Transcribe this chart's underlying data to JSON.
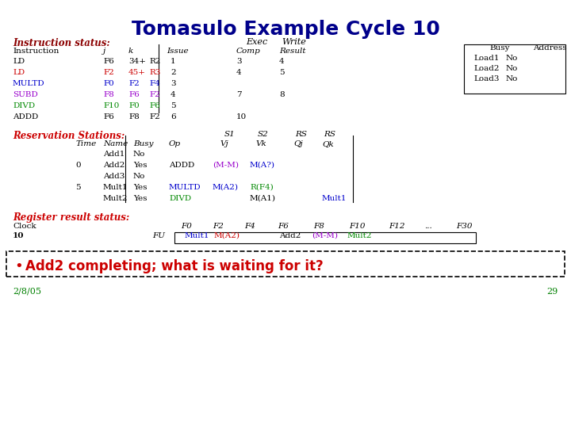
{
  "title": "Tomasulo Example Cycle 10",
  "title_color": "#00008B",
  "bg_color": "#FFFFFF",
  "slide_number": "29",
  "date": "2/8/05",
  "date_color": "#008000",
  "slide_num_color": "#008000",
  "instr_status_label": "Instruction status:",
  "res_stations_label": "Reservation Stations:",
  "reg_result_label": "Register result status:",
  "bullet_text": "Add2 completing; what is waiting for it?",
  "bullet_color": "#CC0000",
  "instr_rows": [
    [
      "LD",
      "F6",
      "34+",
      "R2",
      "1",
      "3",
      "4",
      "black"
    ],
    [
      "LD",
      "F2",
      "45+",
      "R3",
      "2",
      "4",
      "5",
      "#CC0000"
    ],
    [
      "MULTD",
      "F0",
      "F2",
      "F4",
      "3",
      "",
      "",
      "#0000CC"
    ],
    [
      "SUBD",
      "F8",
      "F6",
      "F2",
      "4",
      "7",
      "8",
      "#9900CC"
    ],
    [
      "DIVD",
      "F10",
      "F0",
      "F6",
      "5",
      "",
      "",
      "#008800"
    ],
    [
      "ADDD",
      "F6",
      "F8",
      "F2",
      "6",
      "10",
      "",
      "black"
    ]
  ],
  "rs_rows": [
    [
      "",
      "Add1",
      "No",
      "",
      "",
      "",
      "",
      ""
    ],
    [
      "0",
      "Add2",
      "Yes",
      "ADDD",
      "(M-M)",
      "M(A?)",
      "",
      ""
    ],
    [
      "",
      "Add3",
      "No",
      "",
      "",
      "",
      "",
      ""
    ],
    [
      "5",
      "Mult1",
      "Yes",
      "MULTD",
      "M(A2)",
      "R(F4)",
      "",
      ""
    ],
    [
      "",
      "Mult2",
      "Yes",
      "DIVD",
      "",
      "M(A1)",
      "",
      "Mult1"
    ]
  ],
  "rs_text_colors": [
    [
      "black",
      "black",
      "black",
      "black",
      "black",
      "black",
      "black",
      "black"
    ],
    [
      "black",
      "black",
      "black",
      "black",
      "#9900CC",
      "#0000CC",
      "black",
      "black"
    ],
    [
      "black",
      "black",
      "black",
      "black",
      "black",
      "black",
      "black",
      "black"
    ],
    [
      "black",
      "black",
      "black",
      "#0000CC",
      "#0000CC",
      "#008800",
      "black",
      "black"
    ],
    [
      "black",
      "black",
      "black",
      "#008800",
      "black",
      "black",
      "black",
      "#0000CC"
    ]
  ],
  "reg_headers": [
    [
      "F0",
      228
    ],
    [
      "F2",
      268
    ],
    [
      "F4",
      308
    ],
    [
      "F6",
      350
    ],
    [
      "F8",
      395
    ],
    [
      "F10",
      440
    ],
    [
      "F12",
      490
    ],
    [
      "...",
      535
    ],
    [
      "F30",
      575
    ]
  ],
  "reg_values": [
    [
      "Mult1",
      233,
      "#0000CC"
    ],
    [
      "M(A2)",
      270,
      "#CC0000"
    ],
    [
      "Add2",
      352,
      "black"
    ],
    [
      "(M-M)",
      393,
      "#9900CC"
    ],
    [
      "Mult2",
      438,
      "#008800"
    ]
  ]
}
